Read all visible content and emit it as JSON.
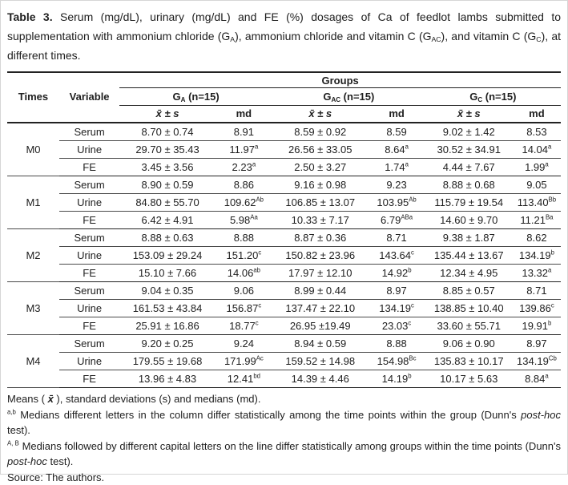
{
  "caption": {
    "label": "Table 3.",
    "p1": " Serum (mg/dL), urinary (mg/dL) and FE (%) dosages of Ca of feedlot lambs submitted to supplementation with ammonium chloride (G",
    "sub1": "A",
    "p2": "), ammonium chloride and vitamin C (G",
    "sub2": "AC",
    "p3": "), and vitamin C (G",
    "sub3": "C",
    "p4": "), at different times."
  },
  "table": {
    "groups_label": "Groups",
    "times_label": "Times",
    "variable_label": "Variable",
    "group_columns": [
      {
        "base": "G",
        "sub": "A",
        "n": " (n=15)"
      },
      {
        "base": "G",
        "sub": "AC",
        "n": " (n=15)"
      },
      {
        "base": "G",
        "sub": "C",
        "n": " (n=15)"
      }
    ],
    "stat_label": "x̄ ± s",
    "md_label": "md",
    "blocks": [
      {
        "time": "M0",
        "rows": [
          {
            "variable": "Serum",
            "cells": [
              {
                "v": "8.70 ± 0.74"
              },
              {
                "v": "8.91"
              },
              {
                "v": "8.59 ± 0.92"
              },
              {
                "v": "8.59"
              },
              {
                "v": "9.02 ± 1.42"
              },
              {
                "v": "8.53"
              }
            ]
          },
          {
            "variable": "Urine",
            "cells": [
              {
                "v": "29.70 ± 35.43"
              },
              {
                "v": "11.97",
                "sup": "a"
              },
              {
                "v": "26.56 ± 33.05"
              },
              {
                "v": "8.64",
                "sup": "a"
              },
              {
                "v": "30.52 ± 34.91"
              },
              {
                "v": "14.04",
                "sup": "a"
              }
            ]
          },
          {
            "variable": "FE",
            "cells": [
              {
                "v": "3.45 ± 3.56"
              },
              {
                "v": "2.23",
                "sup": "a"
              },
              {
                "v": "2.50 ± 3.27"
              },
              {
                "v": "1.74",
                "sup": "a"
              },
              {
                "v": "4.44 ± 7.67"
              },
              {
                "v": "1.99",
                "sup": "a"
              }
            ]
          }
        ]
      },
      {
        "time": "M1",
        "rows": [
          {
            "variable": "Serum",
            "cells": [
              {
                "v": "8.90 ± 0.59"
              },
              {
                "v": "8.86"
              },
              {
                "v": "9.16 ±  0.98"
              },
              {
                "v": "9.23"
              },
              {
                "v": "8.88 ±  0.68"
              },
              {
                "v": "9.05"
              }
            ]
          },
          {
            "variable": "Urine",
            "cells": [
              {
                "v": "84.80 ± 55.70"
              },
              {
                "v": "109.62",
                "sup": "Ab"
              },
              {
                "v": "106.85 ± 13.07"
              },
              {
                "v": "103.95",
                "sup": "Ab"
              },
              {
                "v": "115.79 ±  19.54"
              },
              {
                "v": "113.40",
                "sup": "Bb"
              }
            ]
          },
          {
            "variable": "FE",
            "cells": [
              {
                "v": "6.42 ± 4.91"
              },
              {
                "v": "5.98",
                "sup": "Aa"
              },
              {
                "v": "10.33 ±  7.17"
              },
              {
                "v": "6.79",
                "sup": "ABa"
              },
              {
                "v": "14.60 ±  9.70"
              },
              {
                "v": "11.21",
                "sup": "Ba"
              }
            ]
          }
        ]
      },
      {
        "time": "M2",
        "rows": [
          {
            "variable": "Serum",
            "cells": [
              {
                "v": "8.88 ± 0.63"
              },
              {
                "v": "8.88"
              },
              {
                "v": "8.87 ± 0.36"
              },
              {
                "v": "8.71"
              },
              {
                "v": "9.38 ± 1.87"
              },
              {
                "v": "8.62"
              }
            ]
          },
          {
            "variable": "Urine",
            "cells": [
              {
                "v": "153.09 ± 29.24"
              },
              {
                "v": "151.20",
                "sup": "c"
              },
              {
                "v": "150.82 ± 23.96"
              },
              {
                "v": "143.64",
                "sup": "c"
              },
              {
                "v": "135.44 ± 13.67"
              },
              {
                "v": "134.19",
                "sup": "b"
              }
            ]
          },
          {
            "variable": "FE",
            "cells": [
              {
                "v": "15.10 ± 7.66"
              },
              {
                "v": "14.06",
                "sup": "ab"
              },
              {
                "v": "17.97 ± 12.10"
              },
              {
                "v": "14.92",
                "sup": "b"
              },
              {
                "v": "12.34 ± 4.95"
              },
              {
                "v": "13.32",
                "sup": "a"
              }
            ]
          }
        ]
      },
      {
        "time": "M3",
        "rows": [
          {
            "variable": "Serum",
            "cells": [
              {
                "v": "9.04 ± 0.35"
              },
              {
                "v": "9.06"
              },
              {
                "v": "8.99 ± 0.44"
              },
              {
                "v": "8.97"
              },
              {
                "v": "8.85 ± 0.57"
              },
              {
                "v": "8.71"
              }
            ]
          },
          {
            "variable": "Urine",
            "cells": [
              {
                "v": "161.53 ± 43.84"
              },
              {
                "v": "156.87",
                "sup": "c"
              },
              {
                "v": "137.47 ± 22.10"
              },
              {
                "v": "134.19",
                "sup": "c"
              },
              {
                "v": "138.85 ± 10.40"
              },
              {
                "v": "139.86",
                "sup": "c"
              }
            ]
          },
          {
            "variable": "FE",
            "cells": [
              {
                "v": "25.91 ± 16.86"
              },
              {
                "v": "18.77",
                "sup": "c"
              },
              {
                "v": "26.95 ±19.49"
              },
              {
                "v": "23.03",
                "sup": "c"
              },
              {
                "v": "33.60 ± 55.71"
              },
              {
                "v": "19.91",
                "sup": "b"
              }
            ]
          }
        ]
      },
      {
        "time": "M4",
        "rows": [
          {
            "variable": "Serum",
            "cells": [
              {
                "v": "9.20 ± 0.25"
              },
              {
                "v": "9.24"
              },
              {
                "v": "8.94 ± 0.59"
              },
              {
                "v": "8.88"
              },
              {
                "v": "9.06 ± 0.90"
              },
              {
                "v": "8.97"
              }
            ]
          },
          {
            "variable": "Urine",
            "cells": [
              {
                "v": "179.55 ± 19.68"
              },
              {
                "v": "171.99",
                "sup": "Ac"
              },
              {
                "v": "159.52 ± 14.98"
              },
              {
                "v": "154.98",
                "sup": "Bc"
              },
              {
                "v": "135.83 ± 10.17"
              },
              {
                "v": "134.19",
                "sup": "Cb"
              }
            ]
          },
          {
            "variable": "FE",
            "cells": [
              {
                "v": "13.96 ± 4.83"
              },
              {
                "v": "12.41",
                "sup": "bd"
              },
              {
                "v": "14.39 ± 4.46"
              },
              {
                "v": "14.19",
                "sup": "b"
              },
              {
                "v": "10.17 ± 5.63"
              },
              {
                "v": "8.84",
                "sup": "a"
              }
            ]
          }
        ]
      }
    ]
  },
  "footnotes": {
    "n1": {
      "t1": "Means ( ",
      "sym": "x̄",
      "t2": " ), standard deviations (s) and medians (md)."
    },
    "n2": {
      "sup": "a,b",
      "t1": " Medians different letters in the column differ statistically among the time points within the group (Dunn's ",
      "italic": "post-hoc",
      "t2": " test)."
    },
    "n3": {
      "sup": "A, B",
      "t1": " Medians followed by different capital letters on the line differ statistically among groups within the time points (Dunn's ",
      "italic": "post-hoc",
      "t2": " test)."
    },
    "source": "Source: The authors."
  }
}
